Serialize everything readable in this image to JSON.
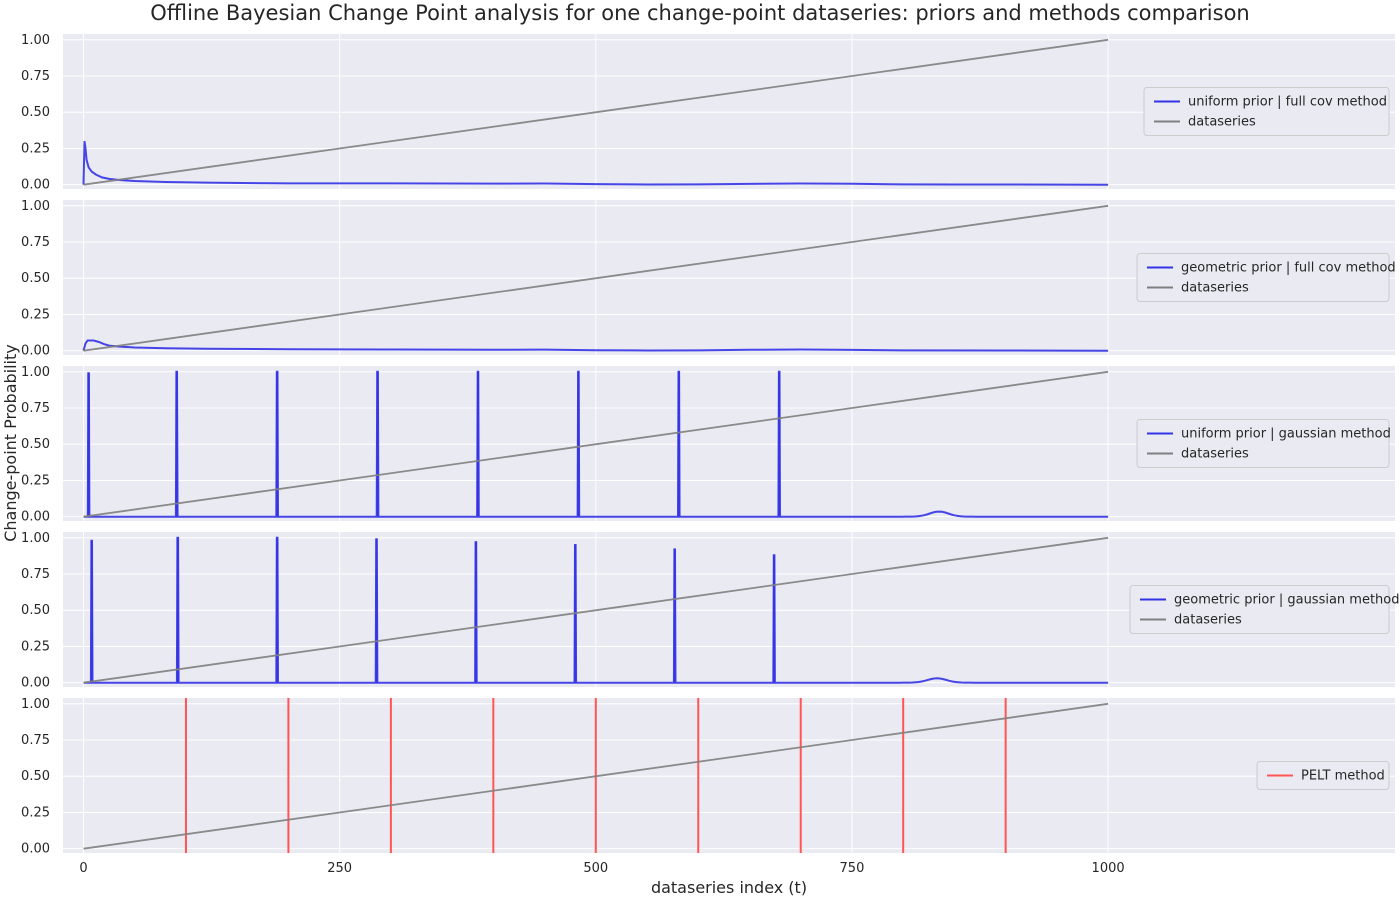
{
  "chart_data": {
    "type": "line",
    "title": "Offline Bayesian Change Point analysis for one change-point dataseries: priors and methods comparison",
    "xlabel": "dataseries index (t)",
    "ylabel": "Change-point Probability",
    "xlim": [
      -20,
      1280
    ],
    "ylim": [
      -0.03,
      1.04
    ],
    "x_ticks": [
      "0",
      "250",
      "500",
      "750",
      "1000"
    ],
    "y_ticks": [
      "0.00",
      "0.25",
      "0.50",
      "0.75",
      "1.00"
    ],
    "grid": true,
    "legend_position": "right",
    "colors": {
      "probability": "#3333e6",
      "dataseries": "#808080",
      "pelt": "#ff5555",
      "background": "#eaeaf2",
      "grid": "#ffffff"
    },
    "panels": [
      {
        "legend": [
          "uniform   prior | full cov  method",
          "dataseries"
        ],
        "series": [
          {
            "name": "uniform   prior | full cov  method",
            "kind": "line",
            "color": "#3333e6",
            "x": [
              0,
              1,
              2,
              3,
              5,
              8,
              12,
              18,
              25,
              35,
              50,
              80,
              120,
              200,
              300,
              400,
              450,
              500,
              550,
              600,
              650,
              700,
              750,
              800,
              850,
              900,
              1000
            ],
            "y": [
              0,
              0.3,
              0.25,
              0.17,
              0.12,
              0.09,
              0.07,
              0.05,
              0.04,
              0.032,
              0.025,
              0.018,
              0.014,
              0.009,
              0.009,
              0.007,
              0.008,
              0.004,
              0.001,
              0.002,
              0.005,
              0.008,
              0.006,
              0.002,
              0.001,
              0.001,
              0
            ]
          },
          {
            "name": "dataseries",
            "kind": "line",
            "color": "#808080",
            "x": [
              0,
              1000
            ],
            "y": [
              0,
              1
            ]
          }
        ]
      },
      {
        "legend": [
          "geometric prior | full cov  method",
          "dataseries"
        ],
        "series": [
          {
            "name": "geometric prior | full cov  method",
            "kind": "line",
            "color": "#3333e6",
            "x": [
              0,
              2,
              4,
              10,
              15,
              20,
              25,
              35,
              50,
              80,
              120,
              200,
              300,
              400,
              450,
              500,
              550,
              600,
              650,
              700,
              750,
              800,
              900,
              1000
            ],
            "y": [
              0,
              0.05,
              0.07,
              0.07,
              0.06,
              0.045,
              0.035,
              0.028,
              0.022,
              0.016,
              0.013,
              0.01,
              0.008,
              0.006,
              0.007,
              0.003,
              0.001,
              0.002,
              0.006,
              0.008,
              0.005,
              0.002,
              0.001,
              0
            ]
          },
          {
            "name": "dataseries",
            "kind": "line",
            "color": "#808080",
            "x": [
              0,
              1000
            ],
            "y": [
              0,
              1
            ]
          }
        ]
      },
      {
        "legend": [
          "uniform   prior | gaussian method",
          "dataseries"
        ],
        "series": [
          {
            "name": "uniform   prior | gaussian method",
            "kind": "spikes",
            "color": "#3333e6",
            "baseline_end": 1000,
            "spikes": [
              {
                "x": 5,
                "y": 0.99
              },
              {
                "x": 91,
                "y": 1.0
              },
              {
                "x": 189,
                "y": 1.0
              },
              {
                "x": 287,
                "y": 1.0
              },
              {
                "x": 385,
                "y": 1.0
              },
              {
                "x": 483,
                "y": 1.0
              },
              {
                "x": 581,
                "y": 1.0
              },
              {
                "x": 679,
                "y": 1.0
              }
            ],
            "bump": {
              "center": 835,
              "height": 0.035,
              "width": 12
            }
          },
          {
            "name": "dataseries",
            "kind": "line",
            "color": "#808080",
            "x": [
              0,
              1000
            ],
            "y": [
              0,
              1
            ]
          }
        ]
      },
      {
        "legend": [
          "geometric prior | gaussian method",
          "dataseries"
        ],
        "series": [
          {
            "name": "geometric prior | gaussian method",
            "kind": "spikes",
            "color": "#3333e6",
            "baseline_end": 1000,
            "spikes": [
              {
                "x": 8,
                "y": 0.98
              },
              {
                "x": 92,
                "y": 1.0
              },
              {
                "x": 189,
                "y": 1.0
              },
              {
                "x": 286,
                "y": 0.99
              },
              {
                "x": 383,
                "y": 0.97
              },
              {
                "x": 480,
                "y": 0.95
              },
              {
                "x": 577,
                "y": 0.92
              },
              {
                "x": 674,
                "y": 0.88
              }
            ],
            "bump": {
              "center": 833,
              "height": 0.03,
              "width": 12
            }
          },
          {
            "name": "dataseries",
            "kind": "line",
            "color": "#808080",
            "x": [
              0,
              1000
            ],
            "y": [
              0,
              1
            ]
          }
        ]
      },
      {
        "legend": [
          "PELT method"
        ],
        "series": [
          {
            "name": "PELT method",
            "kind": "vlines",
            "color": "#ff5555",
            "x": [
              100,
              200,
              300,
              400,
              500,
              600,
              700,
              800,
              900
            ]
          },
          {
            "name": "dataseries",
            "kind": "line",
            "color": "#808080",
            "x": [
              0,
              1000
            ],
            "y": [
              0,
              1
            ]
          }
        ]
      }
    ]
  }
}
